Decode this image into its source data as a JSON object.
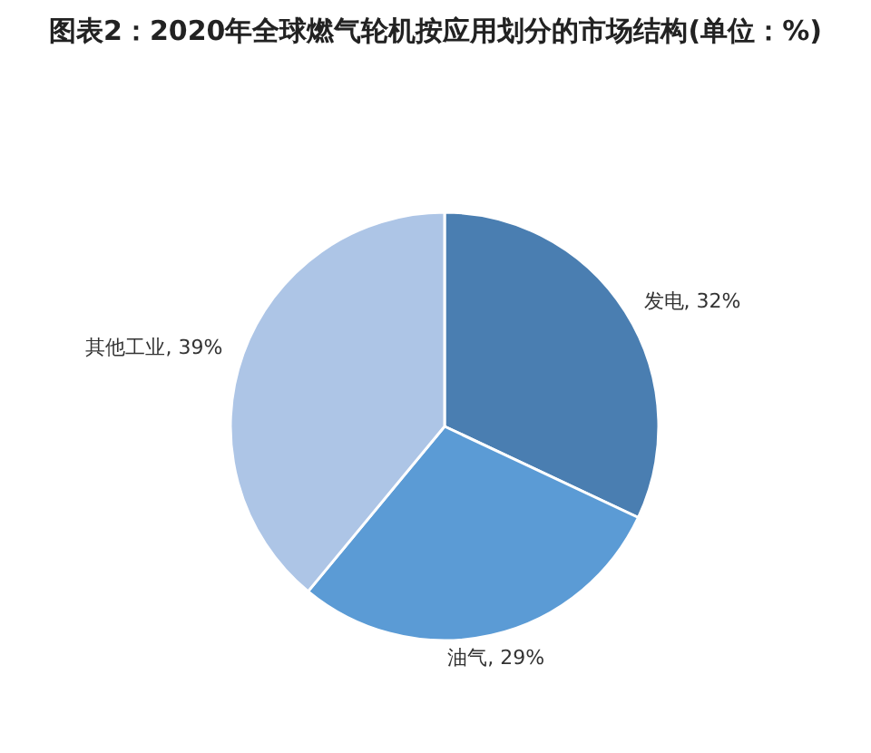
{
  "chart_data": {
    "type": "pie",
    "title": "图表2：2020年全球燃气轮机按应用划分的市场结构(单位：%)",
    "categories": [
      "发电",
      "油气",
      "其他工业"
    ],
    "values": [
      32,
      29,
      39
    ],
    "value_labels": [
      "32%",
      "29%",
      "39%"
    ],
    "colors": [
      "#4a7eb1",
      "#5b9bd5",
      "#adc5e6"
    ]
  }
}
